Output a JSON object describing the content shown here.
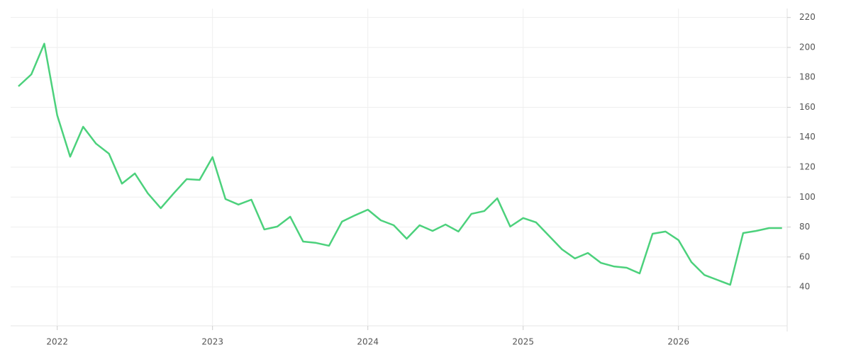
{
  "chart_data": {
    "type": "line",
    "x": [
      2021.75,
      2021.8333,
      2021.9167,
      2022.0,
      2022.0833,
      2022.1667,
      2022.25,
      2022.3333,
      2022.4167,
      2022.5,
      2022.5833,
      2022.6667,
      2022.75,
      2022.8333,
      2022.9167,
      2023.0,
      2023.0833,
      2023.1667,
      2023.25,
      2023.3333,
      2023.4167,
      2023.5,
      2023.5833,
      2023.6667,
      2023.75,
      2023.8333,
      2023.9167,
      2024.0,
      2024.0833,
      2024.1667,
      2024.25,
      2024.3333,
      2024.4167,
      2024.5,
      2024.5833,
      2024.6667,
      2024.75,
      2024.8333,
      2024.9167,
      2025.0,
      2025.0833,
      2025.1667,
      2025.25,
      2025.3333,
      2025.4167,
      2025.5,
      2025.5833,
      2025.6667,
      2025.75,
      2025.8333,
      2025.9167,
      2026.0,
      2026.0833,
      2026.1667,
      2026.25,
      2026.3333,
      2026.4167,
      2026.5,
      2026.5833,
      2026.6667
    ],
    "series": [
      {
        "color": "#4cd17c",
        "values": [
          174,
          182,
          202.5,
          154.6,
          127,
          147,
          135.7,
          129,
          109,
          115.8,
          102.5,
          92.6,
          102.5,
          112,
          111.5,
          126.7,
          98.7,
          95,
          98.3,
          78.4,
          80.3,
          86.9,
          70.3,
          69.4,
          67.5,
          83.6,
          87.8,
          91.6,
          84.5,
          81.2,
          72.2,
          81.2,
          77.4,
          81.7,
          77,
          88.8,
          90.7,
          99.2,
          80.3,
          86,
          83.1,
          74.1,
          65.1,
          59,
          62.7,
          56.1,
          53.7,
          52.8,
          49,
          75.5,
          77,
          71.3,
          56.6,
          48,
          44.7,
          41.4,
          76,
          77.4,
          79.3,
          79.3
        ]
      }
    ],
    "xlim": [
      2021.7,
      2026.7
    ],
    "xticks": [
      2022,
      2023,
      2024,
      2025,
      2026
    ],
    "ylim": [
      14,
      226
    ],
    "yticks": [
      40,
      60,
      80,
      100,
      120,
      140,
      160,
      180,
      200,
      220
    ],
    "grid": true
  }
}
